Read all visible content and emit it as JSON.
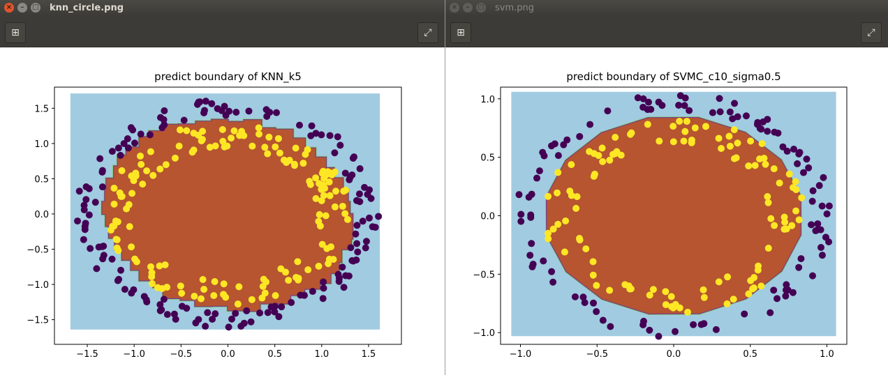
{
  "colors": {
    "outer": "#a1cbe0",
    "inner": "#b65530",
    "point_purple": "#440154",
    "point_yellow": "#fde725",
    "edge_green": "#7bd15f",
    "edge_purple": "#7e3c8e"
  },
  "windows": [
    {
      "title": "knn_circle.png",
      "close_glyph": "×",
      "min_glyph": "–",
      "max_glyph": "□",
      "add_glyph": "⊞",
      "fullscreen_glyph": "⤢"
    },
    {
      "title": "svm.png",
      "close_glyph": "×",
      "min_glyph": "–",
      "max_glyph": "□",
      "add_glyph": "⊞",
      "fullscreen_glyph": "⤢"
    }
  ],
  "chart_data": [
    {
      "type": "scatter",
      "title": "predict boundary of KNN_k5",
      "xlim": [
        -1.85,
        1.85
      ],
      "ylim": [
        -1.85,
        1.8
      ],
      "xticks": [
        -1.5,
        -1.0,
        -0.5,
        0.0,
        0.5,
        1.0,
        1.5
      ],
      "xtick_labels": [
        "−1.5",
        "−1.0",
        "−0.5",
        "0.0",
        "0.5",
        "1.0",
        "1.5"
      ],
      "yticks": [
        -1.5,
        -1.0,
        -0.5,
        0.0,
        0.5,
        1.0,
        1.5
      ],
      "ytick_labels": [
        "−1.5",
        "−1.0",
        "−0.5",
        "0.0",
        "0.5",
        "1.0",
        "1.5"
      ],
      "region_x": [
        -1.68,
        1.62
      ],
      "region_y": [
        -1.64,
        1.71
      ],
      "inner_boundary": {
        "type": "ring",
        "radius": 1.35,
        "rx_scale": 1.0,
        "ry_scale": 1.0,
        "noise": 0.07,
        "steps": true
      },
      "series": [
        {
          "name": "outer",
          "class": 0,
          "radius_range": [
            1.38,
            1.62
          ],
          "count": 150,
          "seed": 11
        },
        {
          "name": "inner",
          "class": 1,
          "radius_range": [
            0.95,
            1.3
          ],
          "count": 150,
          "seed": 23
        }
      ]
    },
    {
      "type": "scatter",
      "title": "predict boundary of SVMC_c10_sigma0.5",
      "xlim": [
        -1.13,
        1.13
      ],
      "ylim": [
        -1.1,
        1.1
      ],
      "xticks": [
        -1.0,
        -0.5,
        0.0,
        0.5,
        1.0
      ],
      "xtick_labels": [
        "−1.0",
        "−0.5",
        "0.0",
        "0.5",
        "1.0"
      ],
      "yticks": [
        -1.0,
        -0.5,
        0.0,
        0.5,
        1.0
      ],
      "ytick_labels": [
        "−1.0",
        "−0.5",
        "0.0",
        "0.5",
        "1.0"
      ],
      "region_x": [
        -1.06,
        1.06
      ],
      "region_y": [
        -1.03,
        1.06
      ],
      "inner_boundary": {
        "type": "poly",
        "radius": 0.87,
        "rx_scale": 0.97,
        "ry_scale": 0.98,
        "sides": 16,
        "rot": 0.2,
        "noise": 0.0,
        "steps": false
      },
      "series": [
        {
          "name": "outer",
          "class": 0,
          "radius_range": [
            0.9,
            1.05
          ],
          "count": 110,
          "seed": 5
        },
        {
          "name": "inner",
          "class": 1,
          "radius_range": [
            0.62,
            0.85
          ],
          "count": 110,
          "seed": 17
        }
      ]
    }
  ]
}
